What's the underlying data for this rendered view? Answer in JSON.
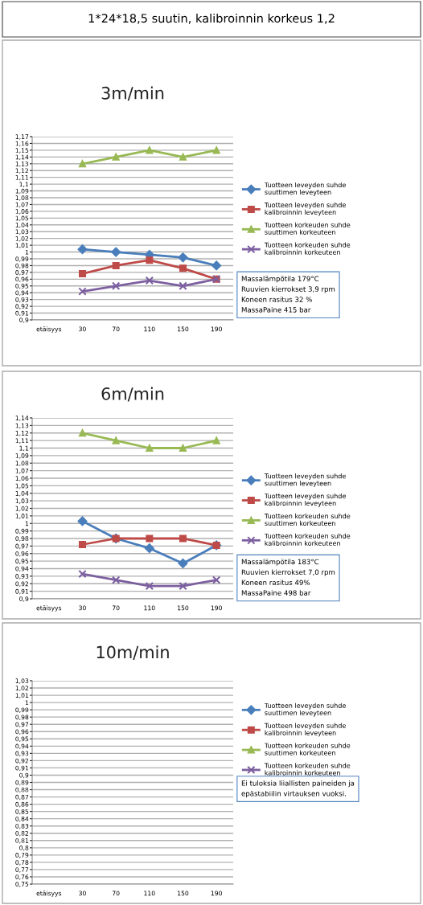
{
  "chart_data": [
    {
      "type": "line",
      "title": "3m/min",
      "categories": [
        "etäisyys",
        "30",
        "70",
        "110",
        "150",
        "190"
      ],
      "series": [
        {
          "name": "Tuotteen leveyden suhde suuttimen leveyteen",
          "color": "#4a7ebb",
          "marker": "diamond",
          "values": [
            null,
            1.004,
            1.0,
            0.996,
            0.992,
            0.98
          ]
        },
        {
          "name": "Tuotteen leveyden suhde kalibroinnin leveyteen",
          "color": "#be4b48",
          "marker": "square",
          "values": [
            null,
            0.968,
            0.98,
            0.988,
            0.976,
            0.96
          ]
        },
        {
          "name": "Tuotteen korkeuden suhde suuttimen korkeuteen",
          "color": "#98b954",
          "marker": "triangle",
          "values": [
            null,
            1.13,
            1.14,
            1.15,
            1.14,
            1.15
          ]
        },
        {
          "name": "Tuotteen korkeuden suhde kalibroinnin korkeuteen",
          "color": "#7d60a0",
          "marker": "cross",
          "values": [
            null,
            0.942,
            0.95,
            0.958,
            0.95,
            0.96
          ]
        }
      ],
      "ylim": [
        0.9,
        1.17
      ],
      "yticks": [
        {
          "value": 0.9,
          "label": "0,9"
        },
        {
          "value": 0.91,
          "label": "0,91"
        },
        {
          "value": 0.92,
          "label": "0,92"
        },
        {
          "value": 0.93,
          "label": "0,93"
        },
        {
          "value": 0.94,
          "label": "0,94"
        },
        {
          "value": 0.95,
          "label": "0,95"
        },
        {
          "value": 0.96,
          "label": "0,96"
        },
        {
          "value": 0.97,
          "label": "0,97"
        },
        {
          "value": 0.98,
          "label": "0,98"
        },
        {
          "value": 0.99,
          "label": "0,99"
        },
        {
          "value": 1,
          "label": "1"
        },
        {
          "value": 1.01,
          "label": "1,01"
        },
        {
          "value": 1.02,
          "label": "1,02"
        },
        {
          "value": 1.03,
          "label": "1,03"
        },
        {
          "value": 1.04,
          "label": "1,04"
        },
        {
          "value": 1.05,
          "label": "1,05"
        },
        {
          "value": 1.06,
          "label": "1,06"
        },
        {
          "value": 1.07,
          "label": "1,07"
        },
        {
          "value": 1.08,
          "label": "1,08"
        },
        {
          "value": 1.09,
          "label": "1,09"
        },
        {
          "value": 1.1,
          "label": "1,1"
        },
        {
          "value": 1.11,
          "label": "1,11"
        },
        {
          "value": 1.12,
          "label": "1,12"
        },
        {
          "value": 1.13,
          "label": "1,13"
        },
        {
          "value": 1.14,
          "label": "1,14"
        },
        {
          "value": 1.15,
          "label": "1,15"
        },
        {
          "value": 1.16,
          "label": "1,16"
        },
        {
          "value": 1.17,
          "label": "1,17"
        }
      ],
      "grid": "y",
      "legend": "right",
      "line_style": "solid",
      "annotations": [
        "1*24*18,5 suutin, kalibroinnin korkeus 1,2",
        "Massalämpötila 179°C\nRuuvien kierrokset 3,9 rpm\nKoneen rasitus 32 %\nMassaPaine 415 bar"
      ]
    },
    {
      "type": "line",
      "title": "6m/min",
      "categories": [
        "etäisyys",
        "30",
        "70",
        "110",
        "150",
        "190"
      ],
      "series": [
        {
          "name": "Tuotteen leveyden suhde suuttimen leveyteen",
          "color": "#4a7ebb",
          "marker": "diamond",
          "values": [
            null,
            1.003,
            0.98,
            0.967,
            0.947,
            0.971
          ]
        },
        {
          "name": "Tuotteen leveyden suhde kalibroinnin leveyteen",
          "color": "#be4b48",
          "marker": "square",
          "values": [
            null,
            0.972,
            0.98,
            0.98,
            0.98,
            0.971
          ]
        },
        {
          "name": "Tuotteen korkeuden suhde suuttimen korkeuteen",
          "color": "#98b954",
          "marker": "triangle",
          "values": [
            null,
            1.12,
            1.11,
            1.1,
            1.1,
            1.11
          ]
        },
        {
          "name": "Tuotteen korkeuden suhde kalibroinnin korkeuteen",
          "color": "#7d60a0",
          "marker": "cross",
          "values": [
            null,
            0.933,
            0.925,
            0.917,
            0.917,
            0.925
          ]
        }
      ],
      "ylim": [
        0.9,
        1.14
      ],
      "yticks": [
        {
          "value": 0.9,
          "label": "0,9"
        },
        {
          "value": 0.91,
          "label": "0,91"
        },
        {
          "value": 0.92,
          "label": "0,92"
        },
        {
          "value": 0.93,
          "label": "0,93"
        },
        {
          "value": 0.94,
          "label": "0,94"
        },
        {
          "value": 0.95,
          "label": "0,95"
        },
        {
          "value": 0.96,
          "label": "0,96"
        },
        {
          "value": 0.97,
          "label": "0,97"
        },
        {
          "value": 0.98,
          "label": "0,98"
        },
        {
          "value": 0.99,
          "label": "0,99"
        },
        {
          "value": 1,
          "label": "1"
        },
        {
          "value": 1.01,
          "label": "1,01"
        },
        {
          "value": 1.02,
          "label": "1,02"
        },
        {
          "value": 1.03,
          "label": "1,03"
        },
        {
          "value": 1.04,
          "label": "1,04"
        },
        {
          "value": 1.05,
          "label": "1,05"
        },
        {
          "value": 1.06,
          "label": "1,06"
        },
        {
          "value": 1.07,
          "label": "1,07"
        },
        {
          "value": 1.08,
          "label": "1,08"
        },
        {
          "value": 1.09,
          "label": "1,09"
        },
        {
          "value": 1.1,
          "label": "1,1"
        },
        {
          "value": 1.11,
          "label": "1,11"
        },
        {
          "value": 1.12,
          "label": "1,12"
        },
        {
          "value": 1.13,
          "label": "1,13"
        },
        {
          "value": 1.14,
          "label": "1,14"
        }
      ],
      "grid": "y",
      "legend": "right",
      "line_style": "solid",
      "annotations": [
        "Massalämpötila 183°C\nRuuvien kierrokset 7,0 rpm\nKoneen rasitus 49%\nMassaPaine 498 bar"
      ]
    },
    {
      "type": "line",
      "title": "10m/min",
      "categories": [
        "etäisyys",
        "30",
        "70",
        "110",
        "150",
        "190"
      ],
      "series": [
        {
          "name": "Tuotteen leveyden suhde suuttimen leveyteen",
          "color": "#4a7ebb",
          "marker": "diamond",
          "values": [
            null,
            null,
            null,
            null,
            null,
            null
          ]
        },
        {
          "name": "Tuotteen leveyden suhde kalibroinnin leveyteen",
          "color": "#be4b48",
          "marker": "square",
          "values": [
            null,
            null,
            null,
            null,
            null,
            null
          ]
        },
        {
          "name": "Tuotteen korkeuden suhde suuttimen korkeuteen",
          "color": "#98b954",
          "marker": "triangle",
          "values": [
            null,
            null,
            null,
            null,
            null,
            null
          ]
        },
        {
          "name": "Tuotteen korkeuden suhde kalibroinnin korkeuteen",
          "color": "#7d60a0",
          "marker": "cross",
          "values": [
            null,
            null,
            null,
            null,
            null,
            null
          ]
        }
      ],
      "ylim": [
        0.75,
        1.03
      ],
      "yticks": [
        {
          "value": 0.75,
          "label": "0,75"
        },
        {
          "value": 0.76,
          "label": "0,76"
        },
        {
          "value": 0.77,
          "label": "0,77"
        },
        {
          "value": 0.78,
          "label": "0,78"
        },
        {
          "value": 0.79,
          "label": "0,79"
        },
        {
          "value": 0.8,
          "label": "0,8"
        },
        {
          "value": 0.81,
          "label": "0,81"
        },
        {
          "value": 0.82,
          "label": "0,82"
        },
        {
          "value": 0.83,
          "label": "0,83"
        },
        {
          "value": 0.84,
          "label": "0,84"
        },
        {
          "value": 0.85,
          "label": "0,85"
        },
        {
          "value": 0.86,
          "label": "0,86"
        },
        {
          "value": 0.87,
          "label": "0,87"
        },
        {
          "value": 0.88,
          "label": "0,88"
        },
        {
          "value": 0.89,
          "label": "0,89"
        },
        {
          "value": 0.9,
          "label": "0,9"
        },
        {
          "value": 0.91,
          "label": "0,91"
        },
        {
          "value": 0.92,
          "label": "0,92"
        },
        {
          "value": 0.93,
          "label": "0,93"
        },
        {
          "value": 0.94,
          "label": "0,94"
        },
        {
          "value": 0.95,
          "label": "0,95"
        },
        {
          "value": 0.96,
          "label": "0,96"
        },
        {
          "value": 0.97,
          "label": "0,97"
        },
        {
          "value": 0.98,
          "label": "0,98"
        },
        {
          "value": 0.99,
          "label": "0,99"
        },
        {
          "value": 1,
          "label": "1"
        },
        {
          "value": 1.01,
          "label": "1,01"
        },
        {
          "value": 1.02,
          "label": "1,02"
        },
        {
          "value": 1.03,
          "label": "1,03"
        }
      ],
      "grid": "y",
      "legend": "right",
      "line_style": "solid",
      "annotations": [
        "Ei tuloksia liiallisten paineiden ja\nepästabiilin virtauksen vuoksi."
      ]
    }
  ]
}
